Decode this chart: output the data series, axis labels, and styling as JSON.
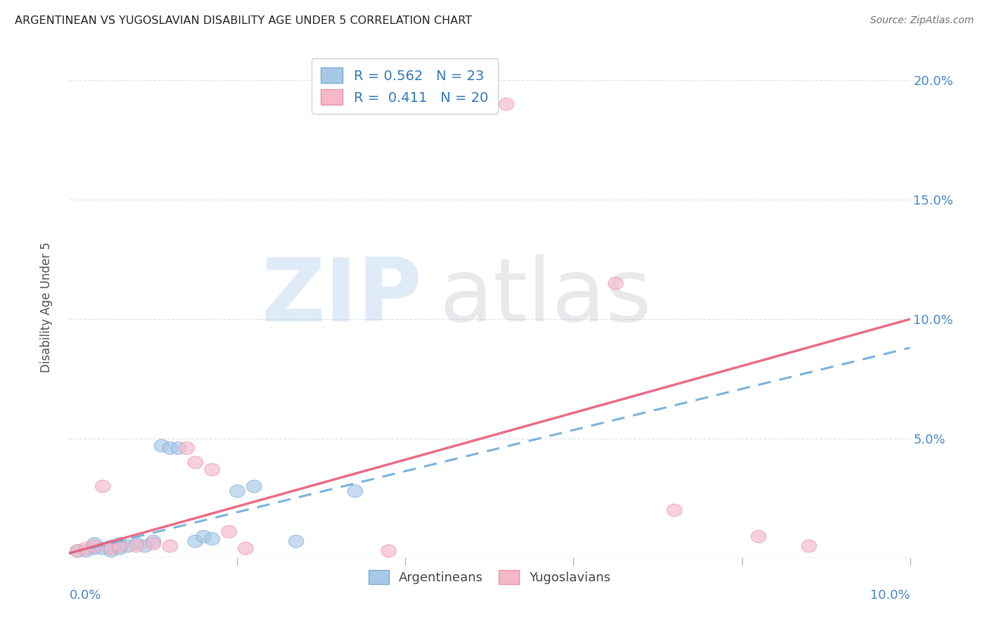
{
  "title": "ARGENTINEAN VS YUGOSLAVIAN DISABILITY AGE UNDER 5 CORRELATION CHART",
  "source": "Source: ZipAtlas.com",
  "ylabel": "Disability Age Under 5",
  "legend_blue_R": "0.562",
  "legend_blue_N": "23",
  "legend_pink_R": "0.411",
  "legend_pink_N": "20",
  "legend_label_blue": "Argentineans",
  "legend_label_pink": "Yugoslavians",
  "xlim": [
    0.0,
    0.1
  ],
  "ylim": [
    0.0,
    0.21
  ],
  "yticks": [
    0.0,
    0.05,
    0.1,
    0.15,
    0.2
  ],
  "ytick_labels": [
    "",
    "5.0%",
    "10.0%",
    "15.0%",
    "20.0%"
  ],
  "blue_color": "#a8c8e8",
  "pink_color": "#f5b8c8",
  "blue_edge_color": "#7aaad0",
  "pink_edge_color": "#e890a8",
  "line_blue_color": "#6aaad8",
  "line_pink_color": "#e8607a",
  "blue_x": [
    0.001,
    0.002,
    0.003,
    0.003,
    0.004,
    0.005,
    0.005,
    0.006,
    0.006,
    0.007,
    0.008,
    0.009,
    0.01,
    0.011,
    0.012,
    0.013,
    0.015,
    0.016,
    0.017,
    0.02,
    0.022,
    0.027,
    0.034
  ],
  "blue_y": [
    0.003,
    0.003,
    0.004,
    0.006,
    0.004,
    0.005,
    0.003,
    0.006,
    0.004,
    0.005,
    0.006,
    0.005,
    0.007,
    0.047,
    0.046,
    0.046,
    0.007,
    0.009,
    0.008,
    0.028,
    0.03,
    0.007,
    0.028
  ],
  "pink_x": [
    0.001,
    0.002,
    0.003,
    0.004,
    0.005,
    0.006,
    0.008,
    0.01,
    0.012,
    0.014,
    0.015,
    0.017,
    0.019,
    0.021,
    0.038,
    0.052,
    0.065,
    0.072,
    0.082,
    0.088
  ],
  "pink_y": [
    0.003,
    0.004,
    0.005,
    0.03,
    0.004,
    0.005,
    0.005,
    0.006,
    0.005,
    0.046,
    0.04,
    0.037,
    0.011,
    0.004,
    0.003,
    0.19,
    0.115,
    0.02,
    0.009,
    0.005
  ],
  "blue_trend_start_y": 0.002,
  "blue_trend_end_y": 0.088,
  "pink_trend_start_y": 0.002,
  "pink_trend_end_y": 0.1,
  "background_color": "#ffffff",
  "grid_color": "#d8e4ec",
  "grid_linestyle": "--",
  "watermark_ZIP_color": "#c0d8f0",
  "watermark_atlas_color": "#c8c8d0"
}
